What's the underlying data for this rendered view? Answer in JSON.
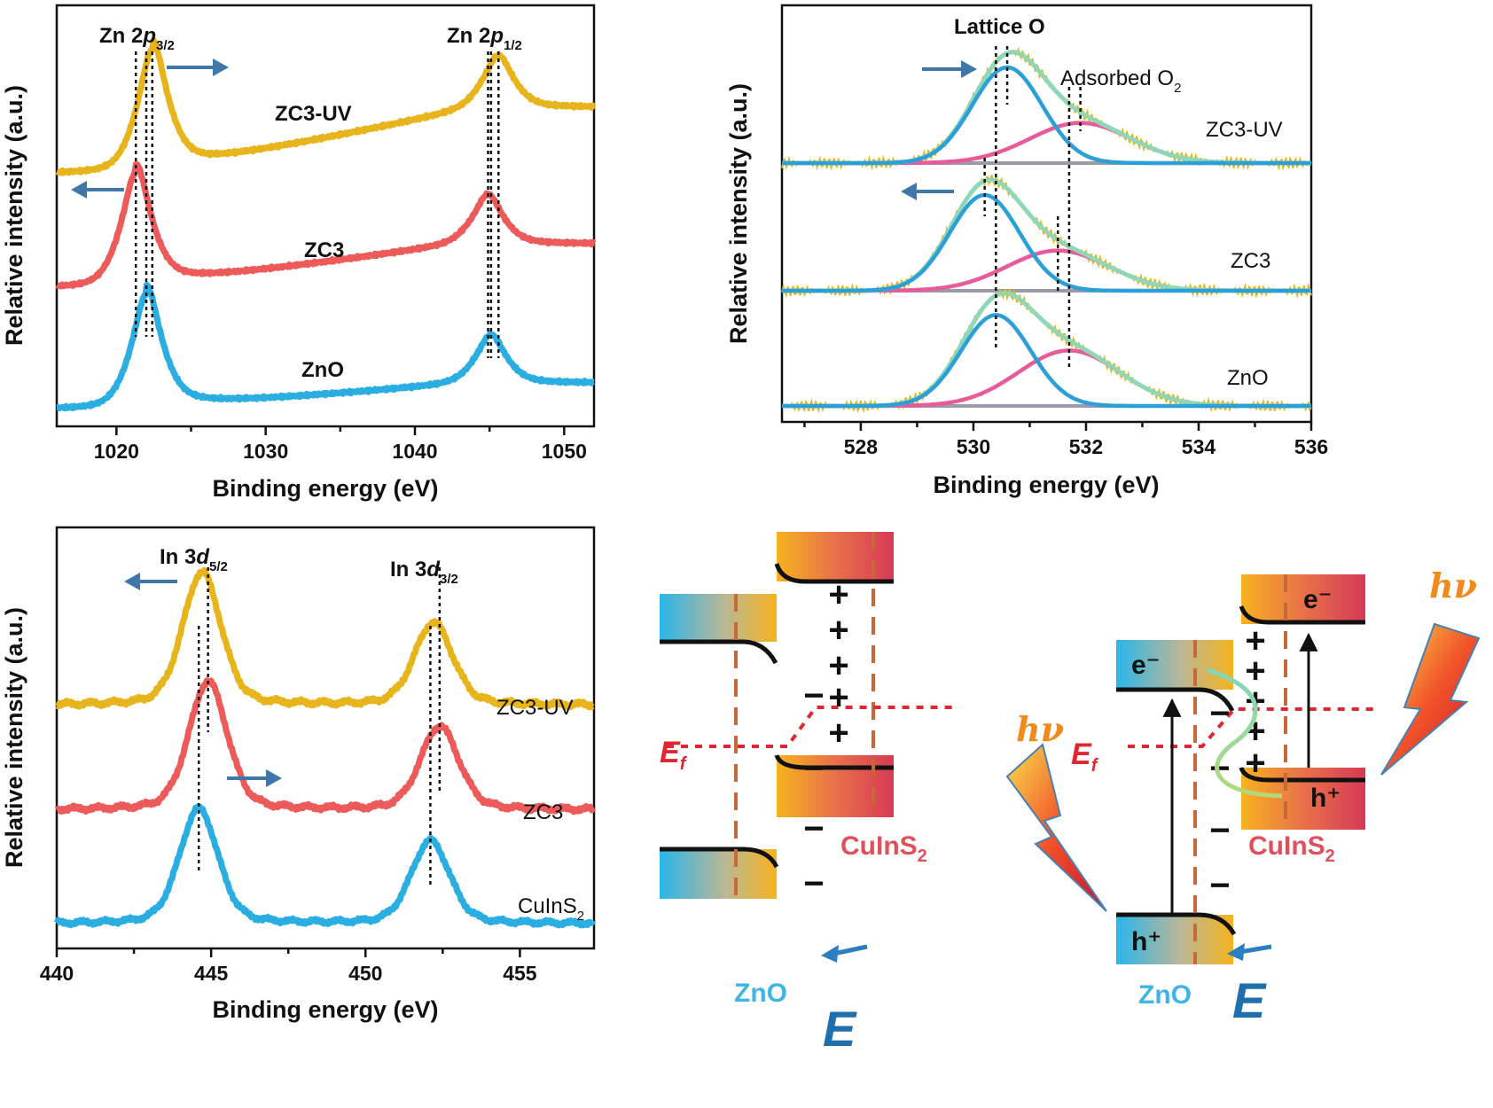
{
  "colors": {
    "zc3uv": "#e8b41c",
    "zc3": "#ec5a5a",
    "zno": "#2aaee2",
    "fit_lattice": "#2b9fd8",
    "fit_adsorbed": "#e75b9a",
    "fit_envelope": "#8fd7b6",
    "baseline": "#9a9aa8",
    "arrow": "#3f78a8",
    "fermi": "#e0262e",
    "efield": "#1f6fae",
    "hv": "#f08a1c"
  },
  "chart_data": [
    {
      "id": "zn2p",
      "type": "line",
      "xlabel": "Binding energy (eV)",
      "ylabel": "Relative intensity (a.u.)",
      "xlim": [
        1016,
        1052
      ],
      "xticks": [
        "1020",
        "1030",
        "1040",
        "1050"
      ],
      "ytick_labels": false,
      "annotations": [
        "Zn 2p3/2",
        "Zn 2p1/2"
      ],
      "series": [
        {
          "name": "ZC3-UV",
          "peaks_eV": [
            1022.4,
            1045.6
          ],
          "peak_heights": [
            1.0,
            0.42
          ],
          "baseline_offset": 2.0
        },
        {
          "name": "ZC3",
          "peaks_eV": [
            1021.3,
            1044.9
          ],
          "peak_heights": [
            1.0,
            0.43
          ],
          "baseline_offset": 1.0
        },
        {
          "name": "ZnO",
          "peaks_eV": [
            1022.0,
            1045.1
          ],
          "peak_heights": [
            1.0,
            0.42
          ],
          "baseline_offset": 0.0
        }
      ],
      "reference_lines_eV": [
        1021.3,
        1022.0,
        1022.4,
        1044.9,
        1045.1,
        1045.6
      ]
    },
    {
      "id": "o1s",
      "type": "line",
      "xlabel": "Binding energy (eV)",
      "ylabel": "Relative intensity (a.u.)",
      "xlim": [
        526.6,
        536
      ],
      "xticks": [
        "528",
        "530",
        "532",
        "534",
        "536"
      ],
      "ytick_labels": false,
      "annotations": [
        "Lattice O",
        "Adsorbed O2"
      ],
      "series": [
        {
          "name": "ZC3-UV",
          "lattice_O_eV": 530.6,
          "adsorbed_O2_eV": 531.9,
          "lattice_height": 1.0,
          "adsorbed_height": 0.42
        },
        {
          "name": "ZC3",
          "lattice_O_eV": 530.2,
          "adsorbed_O2_eV": 531.5,
          "lattice_height": 1.0,
          "adsorbed_height": 0.42
        },
        {
          "name": "ZnO",
          "lattice_O_eV": 530.4,
          "adsorbed_O2_eV": 531.7,
          "lattice_height": 0.95,
          "adsorbed_height": 0.58
        }
      ],
      "reference_lines_eV": [
        530.2,
        530.4,
        530.6,
        531.5,
        531.7,
        531.9
      ]
    },
    {
      "id": "in3d",
      "type": "line",
      "xlabel": "Binding energy (eV)",
      "ylabel": "Relative intensity (a.u.)",
      "xlim": [
        440,
        457.4
      ],
      "xticks": [
        "440",
        "445",
        "450",
        "455"
      ],
      "ytick_labels": false,
      "annotations": [
        "In 3d5/2",
        "In 3d3/2"
      ],
      "series": [
        {
          "name": "ZC3-UV",
          "peaks_eV": [
            444.7,
            452.2
          ],
          "peak_heights": [
            1.0,
            0.62
          ],
          "baseline_offset": 2.0
        },
        {
          "name": "ZC3",
          "peaks_eV": [
            444.9,
            452.4
          ],
          "peak_heights": [
            1.0,
            0.65
          ],
          "baseline_offset": 1.0
        },
        {
          "name": "CuInS2",
          "peaks_eV": [
            444.6,
            452.1
          ],
          "peak_heights": [
            1.0,
            0.72
          ],
          "baseline_offset": 0.0
        }
      ],
      "reference_lines_eV": [
        444.6,
        444.9,
        452.1,
        452.4
      ]
    }
  ],
  "diagram": {
    "zno_label": "ZnO",
    "cis_label": "CuInS",
    "cis_sub": "2",
    "fermi_label": "E",
    "fermi_sub": "f",
    "field_label": "E",
    "hv_label": "hν",
    "electron": "e⁻",
    "hole": "h⁺",
    "plus": "+",
    "minus": "−"
  },
  "labels": {
    "zn_p32_main": "Zn 2",
    "zn_p32_it": "p",
    "zn_p32_sub": "3/2",
    "zn_p12_main": "Zn 2",
    "zn_p12_it": "p",
    "zn_p12_sub": "1/2",
    "lattice_o": "Lattice O",
    "adsorbed_main": "Adsorbed O",
    "adsorbed_sub": "2",
    "in_d52_main": "In 3",
    "in_d52_it": "d",
    "in_d52_sub": "5/2",
    "in_d32_main": "In 3",
    "in_d32_it": "d",
    "in_d32_sub": "3/2",
    "zc3uv": "ZC3-UV",
    "zc3": "ZC3",
    "zno": "ZnO",
    "cis_main": "CuInS",
    "cis_sub": "2"
  }
}
